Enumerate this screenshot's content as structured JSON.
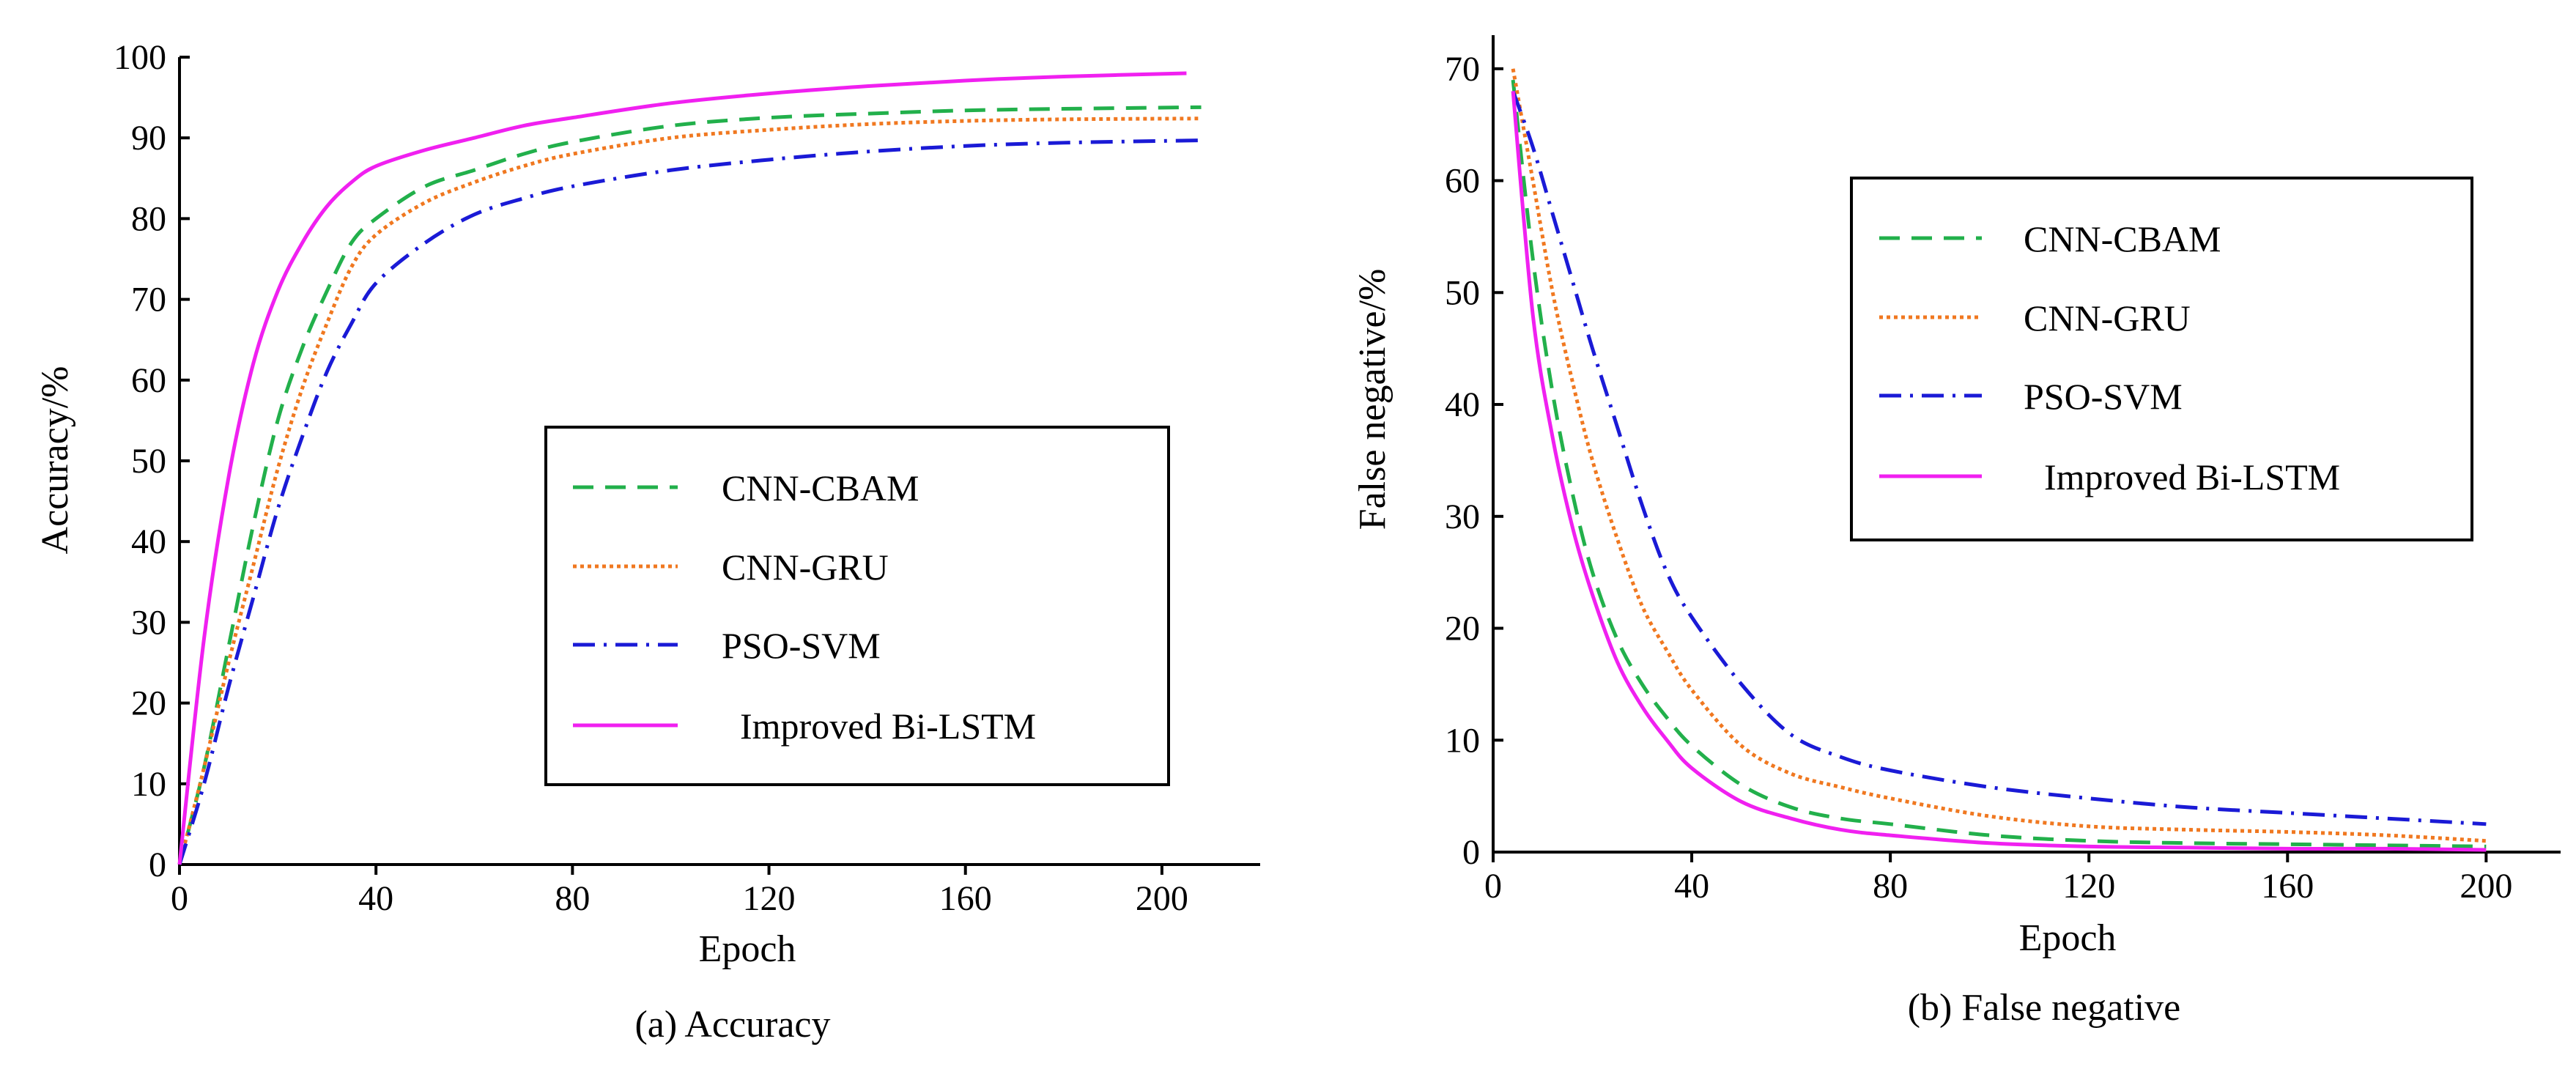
{
  "chart_data": [
    {
      "type": "line",
      "title": "",
      "caption": "(a) Accuracy",
      "xlabel": "Epoch",
      "ylabel": "Accuracy/%",
      "xlim": [
        0,
        220
      ],
      "ylim": [
        0,
        100
      ],
      "xticks": [
        0,
        40,
        80,
        120,
        160,
        200
      ],
      "yticks": [
        0,
        10,
        20,
        30,
        40,
        50,
        60,
        70,
        80,
        90,
        100
      ],
      "legend_position": "center-right",
      "series": [
        {
          "name": "CNN-CBAM",
          "color": "#22b04b",
          "style": "dashed",
          "x": [
            0,
            5,
            10,
            15,
            20,
            25,
            30,
            35,
            40,
            50,
            60,
            70,
            80,
            100,
            120,
            140,
            160,
            180,
            208
          ],
          "y": [
            0,
            12,
            27,
            42,
            55,
            64,
            71,
            77,
            80,
            84,
            86,
            88,
            89.5,
            91.5,
            92.5,
            93,
            93.4,
            93.6,
            93.8
          ]
        },
        {
          "name": "CNN-GRU",
          "color": "#f07820",
          "style": "dotted",
          "x": [
            0,
            5,
            10,
            15,
            20,
            25,
            30,
            35,
            40,
            50,
            60,
            70,
            80,
            100,
            120,
            140,
            160,
            180,
            208
          ],
          "y": [
            0,
            12,
            25,
            37,
            49,
            59,
            67,
            74,
            78,
            82,
            84.5,
            86.5,
            88,
            90,
            91,
            91.7,
            92.1,
            92.3,
            92.4
          ]
        },
        {
          "name": "PSO-SVM",
          "color": "#1a1ad6",
          "style": "dashdot",
          "x": [
            0,
            5,
            10,
            15,
            20,
            25,
            30,
            35,
            40,
            50,
            60,
            70,
            80,
            100,
            120,
            140,
            160,
            180,
            208
          ],
          "y": [
            0,
            10,
            22,
            33,
            44,
            53,
            61,
            67,
            72,
            77,
            80.5,
            82.5,
            84,
            86,
            87.3,
            88.3,
            89,
            89.4,
            89.7
          ]
        },
        {
          "name": "Improved Bi-LSTM",
          "color": "#f020f0",
          "style": "solid",
          "x": [
            0,
            5,
            10,
            15,
            20,
            25,
            30,
            35,
            40,
            50,
            60,
            70,
            80,
            100,
            120,
            140,
            160,
            180,
            205
          ],
          "y": [
            0,
            28,
            48,
            62,
            71,
            77,
            81.5,
            84.5,
            86.5,
            88.5,
            90,
            91.5,
            92.5,
            94.3,
            95.5,
            96.4,
            97.1,
            97.6,
            98
          ]
        }
      ]
    },
    {
      "type": "line",
      "title": "",
      "caption": "(b) False negative",
      "xlabel": "Epoch",
      "ylabel": "False negative/%",
      "xlim": [
        0,
        215
      ],
      "ylim": [
        0,
        73
      ],
      "xticks": [
        0,
        40,
        80,
        120,
        160,
        200
      ],
      "yticks": [
        0,
        10,
        20,
        30,
        40,
        50,
        60,
        70
      ],
      "legend_position": "top-right",
      "series": [
        {
          "name": "CNN-CBAM",
          "color": "#22b04b",
          "style": "dashed",
          "x": [
            4,
            8,
            12,
            16,
            20,
            25,
            30,
            35,
            40,
            50,
            60,
            70,
            80,
            100,
            120,
            140,
            160,
            180,
            200
          ],
          "y": [
            69,
            53,
            41,
            32,
            25,
            19,
            15,
            12,
            9.5,
            6,
            4,
            3,
            2.5,
            1.5,
            1,
            0.8,
            0.7,
            0.6,
            0.5
          ]
        },
        {
          "name": "CNN-GRU",
          "color": "#f07820",
          "style": "dotted",
          "x": [
            4,
            8,
            12,
            16,
            20,
            25,
            30,
            35,
            40,
            50,
            60,
            70,
            80,
            100,
            120,
            140,
            160,
            180,
            200
          ],
          "y": [
            70,
            60,
            50,
            42,
            35,
            28,
            22,
            18,
            14.5,
            9.5,
            7,
            5.8,
            4.8,
            3.2,
            2.3,
            2,
            1.8,
            1.5,
            1
          ]
        },
        {
          "name": "PSO-SVM",
          "color": "#1a1ad6",
          "style": "dashdot",
          "x": [
            4,
            8,
            12,
            16,
            20,
            25,
            30,
            35,
            40,
            50,
            60,
            70,
            80,
            100,
            120,
            140,
            160,
            180,
            200
          ],
          "y": [
            68,
            63,
            57,
            51,
            45,
            38,
            31,
            25,
            21,
            15,
            10.5,
            8.5,
            7.3,
            5.8,
            4.8,
            4,
            3.5,
            3,
            2.5
          ]
        },
        {
          "name": "Improved Bi-LSTM",
          "color": "#f020f0",
          "style": "solid",
          "x": [
            4,
            8,
            12,
            16,
            20,
            25,
            30,
            35,
            40,
            50,
            60,
            70,
            80,
            100,
            120,
            140,
            160,
            180,
            200
          ],
          "y": [
            68,
            48,
            37,
            29,
            23,
            17,
            13,
            10,
            7.5,
            4.5,
            3,
            2,
            1.5,
            0.8,
            0.5,
            0.4,
            0.3,
            0.3,
            0.2
          ]
        }
      ]
    }
  ]
}
